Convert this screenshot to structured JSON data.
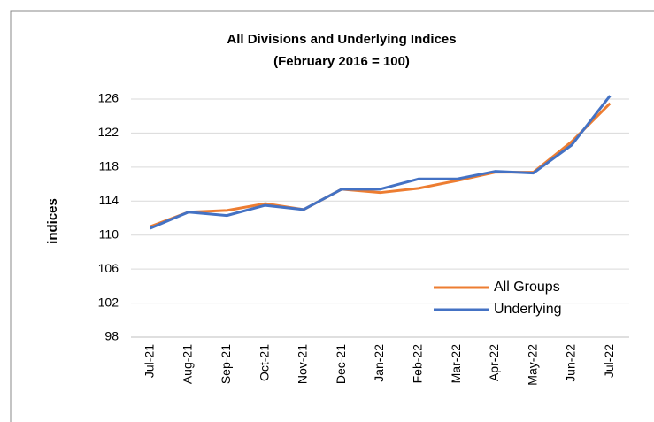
{
  "chart_data": {
    "type": "line",
    "title": "All Divisions and Underlying Indices",
    "subtitle": "(February 2016 = 100)",
    "y_label": "indices",
    "categories": [
      "Jul-21",
      "Aug-21",
      "Sep-21",
      "Oct-21",
      "Nov-21",
      "Dec-21",
      "Jan-22",
      "Feb-22",
      "Mar-22",
      "Apr-22",
      "May-22",
      "Jun-22",
      "Jul-22"
    ],
    "series": [
      {
        "name": "All Groups",
        "color": "#ed7d31",
        "values": [
          111.0,
          112.7,
          112.9,
          113.7,
          113.0,
          115.4,
          115.0,
          115.5,
          116.4,
          117.4,
          117.4,
          121.0,
          125.5
        ]
      },
      {
        "name": "Underlying",
        "color": "#4472c4",
        "values": [
          110.8,
          112.7,
          112.3,
          113.5,
          113.0,
          115.4,
          115.4,
          116.6,
          116.6,
          117.5,
          117.3,
          120.6,
          126.4
        ]
      }
    ],
    "ylim": [
      98,
      126
    ],
    "yticks": [
      98,
      102,
      106,
      110,
      114,
      118,
      122,
      126
    ],
    "grid": true,
    "legend": "lower right"
  }
}
